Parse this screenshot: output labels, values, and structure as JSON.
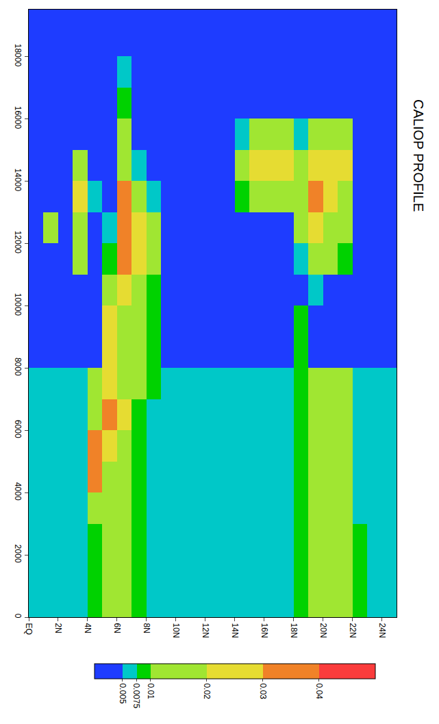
{
  "chart_data": {
    "type": "heatmap",
    "title": "CALIOP PROFILE",
    "x": [
      0.5,
      1.5,
      2.5,
      3.5,
      4.5,
      5.5,
      6.5,
      7.5,
      8.5,
      9.5,
      10.5,
      11.5,
      12.5,
      13.5,
      14.5,
      15.5,
      16.5,
      17.5,
      18.5,
      19.5,
      20.5,
      21.5,
      22.5,
      23.5,
      24.5
    ],
    "y": [
      500,
      1500,
      2500,
      3500,
      4500,
      5500,
      6500,
      7500,
      8500,
      9500,
      10500,
      11500,
      12500,
      13500,
      14500,
      15500,
      16500,
      17500,
      18500,
      19500
    ],
    "z": [
      [
        0.006,
        0.006,
        0.006,
        0.006,
        0.008,
        0.012,
        0.012,
        0.008,
        0.007,
        0.006,
        0.006,
        0.006,
        0.006,
        0.006,
        0.006,
        0.006,
        0.006,
        0.006,
        0.008,
        0.012,
        0.012,
        0.012,
        0.008,
        0.006,
        0.007
      ],
      [
        0.006,
        0.007,
        0.006,
        0.006,
        0.008,
        0.012,
        0.013,
        0.008,
        0.007,
        0.006,
        0.006,
        0.006,
        0.006,
        0.006,
        0.006,
        0.006,
        0.006,
        0.007,
        0.008,
        0.013,
        0.012,
        0.012,
        0.008,
        0.006,
        0.006
      ],
      [
        0.006,
        0.006,
        0.006,
        0.006,
        0.009,
        0.013,
        0.012,
        0.008,
        0.007,
        0.006,
        0.006,
        0.006,
        0.006,
        0.006,
        0.006,
        0.006,
        0.006,
        0.006,
        0.008,
        0.012,
        0.013,
        0.011,
        0.008,
        0.006,
        0.006
      ],
      [
        0.006,
        0.006,
        0.006,
        0.006,
        0.01,
        0.013,
        0.012,
        0.008,
        0.007,
        0.006,
        0.006,
        0.006,
        0.005,
        0.006,
        0.006,
        0.006,
        0.006,
        0.006,
        0.008,
        0.012,
        0.012,
        0.011,
        0.007,
        0.006,
        0.006
      ],
      [
        0.006,
        0.006,
        0.006,
        0.006,
        0.035,
        0.014,
        0.013,
        0.008,
        0.007,
        0.006,
        0.006,
        0.006,
        0.005,
        0.006,
        0.006,
        0.006,
        0.006,
        0.006,
        0.008,
        0.012,
        0.012,
        0.011,
        0.007,
        0.006,
        0.006
      ],
      [
        0.006,
        0.006,
        0.006,
        0.006,
        0.03,
        0.02,
        0.015,
        0.008,
        0.007,
        0.006,
        0.006,
        0.006,
        0.006,
        0.006,
        0.006,
        0.006,
        0.006,
        0.006,
        0.008,
        0.012,
        0.012,
        0.011,
        0.007,
        0.006,
        0.006
      ],
      [
        0.006,
        0.006,
        0.006,
        0.006,
        0.012,
        0.03,
        0.025,
        0.009,
        0.007,
        0.006,
        0.006,
        0.006,
        0.006,
        0.006,
        0.006,
        0.006,
        0.006,
        0.006,
        0.008,
        0.012,
        0.012,
        0.011,
        0.007,
        0.006,
        0.006
      ],
      [
        0.006,
        0.006,
        0.006,
        0.006,
        0.01,
        0.025,
        0.018,
        0.012,
        0.008,
        0.006,
        0.006,
        0.006,
        0.006,
        0.006,
        0.006,
        0.006,
        0.006,
        0.006,
        0.008,
        0.012,
        0.012,
        0.011,
        0.007,
        0.006,
        0.006
      ],
      [
        0.002,
        0.002,
        0.002,
        0.002,
        0.003,
        0.025,
        0.015,
        0.012,
        0.008,
        0.002,
        0.002,
        0.002,
        0.002,
        0.002,
        0.002,
        0.002,
        0.002,
        0.002,
        0.008,
        0.004,
        0.003,
        0.002,
        0.002,
        0.002,
        0.002
      ],
      [
        0.002,
        0.002,
        0.002,
        0.002,
        0.002,
        0.02,
        0.014,
        0.01,
        0.008,
        0.002,
        0.002,
        0.002,
        0.002,
        0.002,
        0.002,
        0.002,
        0.002,
        0.002,
        0.009,
        0.004,
        0.003,
        0.002,
        0.002,
        0.002,
        0.002
      ],
      [
        0.002,
        0.002,
        0.002,
        0.002,
        0.002,
        0.015,
        0.025,
        0.015,
        0.008,
        0.002,
        0.002,
        0.002,
        0.002,
        0.002,
        0.002,
        0.002,
        0.002,
        0.002,
        0.004,
        0.006,
        0.004,
        0.002,
        0.002,
        0.002,
        0.002
      ],
      [
        0.002,
        0.002,
        0.002,
        0.012,
        0.003,
        0.008,
        0.03,
        0.02,
        0.01,
        0.002,
        0.002,
        0.002,
        0.002,
        0.002,
        0.002,
        0.002,
        0.002,
        0.003,
        0.006,
        0.015,
        0.012,
        0.008,
        0.002,
        0.002,
        0.002
      ],
      [
        0.002,
        0.012,
        0.002,
        0.018,
        0.004,
        0.005,
        0.035,
        0.025,
        0.01,
        0.002,
        0.002,
        0.002,
        0.002,
        0.002,
        0.002,
        0.002,
        0.002,
        0.004,
        0.01,
        0.02,
        0.018,
        0.014,
        0.003,
        0.002,
        0.002
      ],
      [
        0.002,
        0.004,
        0.002,
        0.022,
        0.006,
        0.004,
        0.03,
        0.012,
        0.006,
        0.002,
        0.002,
        0.002,
        0.002,
        0.002,
        0.008,
        0.01,
        0.012,
        0.01,
        0.012,
        0.03,
        0.02,
        0.018,
        0.004,
        0.002,
        0.002
      ],
      [
        0.002,
        0.002,
        0.002,
        0.01,
        0.003,
        0.003,
        0.015,
        0.006,
        0.003,
        0.002,
        0.002,
        0.002,
        0.002,
        0.002,
        0.012,
        0.022,
        0.024,
        0.02,
        0.015,
        0.02,
        0.022,
        0.026,
        0.003,
        0.002,
        0.002
      ],
      [
        0.002,
        0.002,
        0.002,
        0.002,
        0.002,
        0.002,
        0.012,
        0.003,
        0.002,
        0.002,
        0.002,
        0.002,
        0.002,
        0.002,
        0.006,
        0.018,
        0.016,
        0.01,
        0.006,
        0.01,
        0.012,
        0.015,
        0.002,
        0.002,
        0.002
      ],
      [
        0.002,
        0.002,
        0.002,
        0.002,
        0.002,
        0.002,
        0.008,
        0.002,
        0.002,
        0.002,
        0.002,
        0.002,
        0.002,
        0.002,
        0.002,
        0.003,
        0.003,
        0.002,
        0.002,
        0.002,
        0.003,
        0.003,
        0.002,
        0.002,
        0.002
      ],
      [
        0.003,
        0.002,
        0.002,
        0.002,
        0.002,
        0.003,
        0.007,
        0.002,
        0.002,
        0.002,
        0.002,
        0.002,
        0.002,
        0.002,
        0.002,
        0.002,
        0.002,
        0.002,
        0.002,
        0.003,
        0.003,
        0.002,
        0.002,
        0.002,
        0.003
      ],
      [
        0.003,
        0.003,
        0.003,
        0.003,
        0.003,
        0.003,
        0.004,
        0.003,
        0.003,
        0.003,
        0.003,
        0.003,
        0.003,
        0.003,
        0.003,
        0.003,
        0.003,
        0.003,
        0.003,
        0.003,
        0.003,
        0.003,
        0.003,
        0.003,
        0.003
      ],
      [
        0.003,
        0.003,
        0.003,
        0.003,
        0.003,
        0.003,
        0.003,
        0.003,
        0.003,
        0.003,
        0.003,
        0.003,
        0.003,
        0.003,
        0.003,
        0.003,
        0.003,
        0.003,
        0.003,
        0.003,
        0.003,
        0.003,
        0.003,
        0.003,
        0.003
      ]
    ],
    "xlim": [
      0,
      25
    ],
    "ylim": [
      0,
      19500
    ],
    "xticks": [
      {
        "value": 0,
        "label": "EQ"
      },
      {
        "value": 2,
        "label": "2N"
      },
      {
        "value": 4,
        "label": "4N"
      },
      {
        "value": 6,
        "label": "6N"
      },
      {
        "value": 8,
        "label": "8N"
      },
      {
        "value": 10,
        "label": "10N"
      },
      {
        "value": 12,
        "label": "12N"
      },
      {
        "value": 14,
        "label": "14N"
      },
      {
        "value": 16,
        "label": "16N"
      },
      {
        "value": 18,
        "label": "18N"
      },
      {
        "value": 20,
        "label": "20N"
      },
      {
        "value": 22,
        "label": "22N"
      },
      {
        "value": 24,
        "label": "24N"
      }
    ],
    "yticks": [
      0,
      2000,
      4000,
      6000,
      8000,
      10000,
      12000,
      14000,
      16000,
      18000
    ],
    "colorbar": {
      "range": [
        0,
        0.05
      ],
      "ticks": [
        0.005,
        0.0075,
        0.01,
        0.02,
        0.03,
        0.04
      ],
      "colors": [
        "#1e3cff",
        "#00c8c8",
        "#00d200",
        "#a0e632",
        "#e6dc32",
        "#f08228",
        "#fa3c3c"
      ]
    },
    "grid": false
  }
}
